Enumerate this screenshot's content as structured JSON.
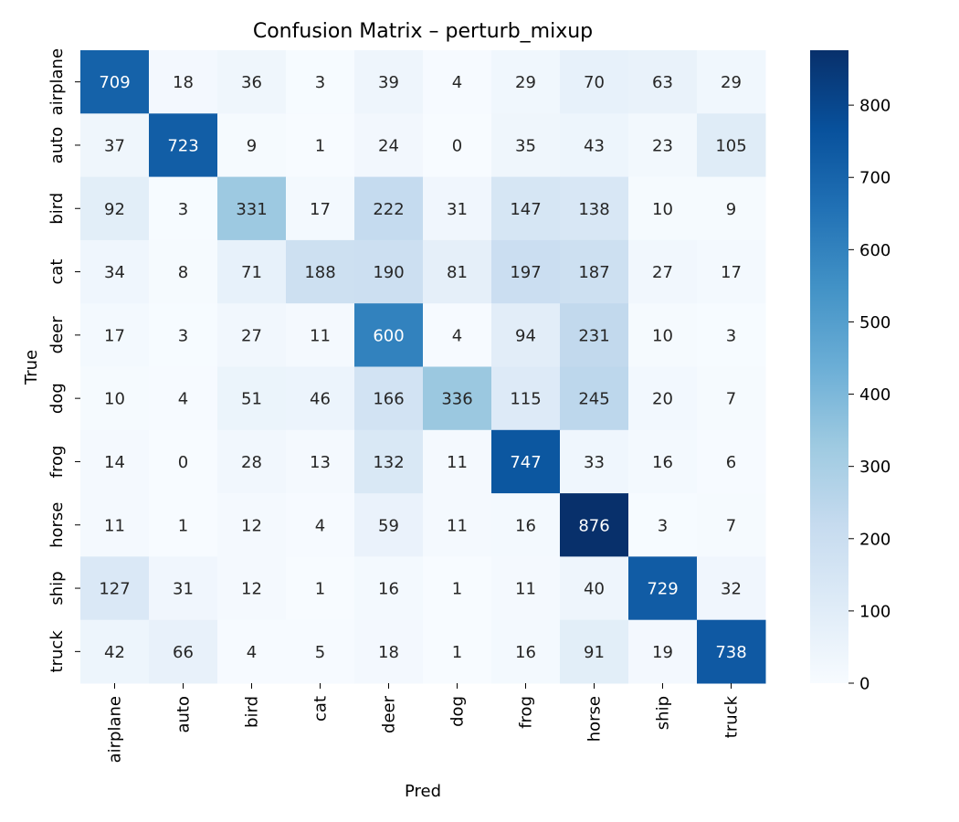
{
  "chart_data": {
    "type": "heatmap",
    "title": "Confusion Matrix – perturb_mixup",
    "xlabel": "Pred",
    "ylabel": "True",
    "x_categories": [
      "airplane",
      "auto",
      "bird",
      "cat",
      "deer",
      "dog",
      "frog",
      "horse",
      "ship",
      "truck"
    ],
    "y_categories": [
      "airplane",
      "auto",
      "bird",
      "cat",
      "deer",
      "dog",
      "frog",
      "horse",
      "ship",
      "truck"
    ],
    "values": [
      [
        709,
        18,
        36,
        3,
        39,
        4,
        29,
        70,
        63,
        29
      ],
      [
        37,
        723,
        9,
        1,
        24,
        0,
        35,
        43,
        23,
        105
      ],
      [
        92,
        3,
        331,
        17,
        222,
        31,
        147,
        138,
        10,
        9
      ],
      [
        34,
        8,
        71,
        188,
        190,
        81,
        197,
        187,
        27,
        17
      ],
      [
        17,
        3,
        27,
        11,
        600,
        4,
        94,
        231,
        10,
        3
      ],
      [
        10,
        4,
        51,
        46,
        166,
        336,
        115,
        245,
        20,
        7
      ],
      [
        14,
        0,
        28,
        13,
        132,
        11,
        747,
        33,
        16,
        6
      ],
      [
        11,
        1,
        12,
        4,
        59,
        11,
        16,
        876,
        3,
        7
      ],
      [
        127,
        31,
        12,
        1,
        16,
        1,
        11,
        40,
        729,
        32
      ],
      [
        42,
        66,
        4,
        5,
        18,
        1,
        16,
        91,
        19,
        738
      ]
    ],
    "colorbar": {
      "range": [
        0,
        876
      ],
      "ticks": [
        0,
        100,
        200,
        300,
        400,
        500,
        600,
        700,
        800
      ],
      "colormap": "Blues",
      "stops": [
        "#f7fbff",
        "#deebf7",
        "#c6dbef",
        "#9ecae1",
        "#6baed6",
        "#4292c6",
        "#2171b5",
        "#08519c",
        "#08306b"
      ]
    },
    "grid": false,
    "legend": "colorbar-right"
  }
}
